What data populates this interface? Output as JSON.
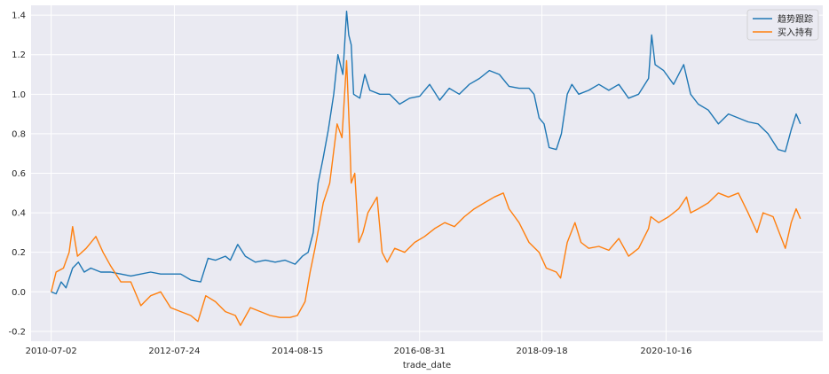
{
  "chart_data": {
    "type": "line",
    "title": "",
    "xlabel": "trade_date",
    "ylabel": "",
    "ylim": [
      -0.25,
      1.45
    ],
    "xlim": [
      "2010-03-01",
      "2023-06-01"
    ],
    "x_ticks": [
      "2010-07-02",
      "2012-07-24",
      "2014-08-15",
      "2016-08-31",
      "2018-09-18",
      "2020-10-16"
    ],
    "y_ticks": [
      -0.2,
      0.0,
      0.2,
      0.4,
      0.6,
      0.8,
      1.0,
      1.2,
      1.4
    ],
    "grid": true,
    "legend_position": "top-right",
    "series": [
      {
        "name": "趋势跟踪",
        "color": "#1f77b4",
        "points": [
          [
            "2010-07-02",
            0.0
          ],
          [
            "2010-08-01",
            -0.01
          ],
          [
            "2010-09-01",
            0.05
          ],
          [
            "2010-10-01",
            0.02
          ],
          [
            "2010-11-10",
            0.12
          ],
          [
            "2010-12-15",
            0.15
          ],
          [
            "2011-01-20",
            0.1
          ],
          [
            "2011-03-01",
            0.12
          ],
          [
            "2011-05-01",
            0.1
          ],
          [
            "2011-07-01",
            0.1
          ],
          [
            "2011-09-01",
            0.09
          ],
          [
            "2011-11-01",
            0.08
          ],
          [
            "2012-01-01",
            0.09
          ],
          [
            "2012-03-01",
            0.1
          ],
          [
            "2012-05-01",
            0.09
          ],
          [
            "2012-07-01",
            0.09
          ],
          [
            "2012-09-01",
            0.09
          ],
          [
            "2012-11-01",
            0.06
          ],
          [
            "2013-01-01",
            0.05
          ],
          [
            "2013-02-15",
            0.17
          ],
          [
            "2013-04-01",
            0.16
          ],
          [
            "2013-06-01",
            0.18
          ],
          [
            "2013-07-01",
            0.16
          ],
          [
            "2013-08-15",
            0.24
          ],
          [
            "2013-10-01",
            0.18
          ],
          [
            "2013-12-01",
            0.15
          ],
          [
            "2014-02-01",
            0.16
          ],
          [
            "2014-04-01",
            0.15
          ],
          [
            "2014-06-01",
            0.16
          ],
          [
            "2014-08-01",
            0.14
          ],
          [
            "2014-09-15",
            0.18
          ],
          [
            "2014-10-20",
            0.2
          ],
          [
            "2014-11-20",
            0.3
          ],
          [
            "2014-12-20",
            0.55
          ],
          [
            "2015-01-20",
            0.68
          ],
          [
            "2015-02-20",
            0.82
          ],
          [
            "2015-03-25",
            1.0
          ],
          [
            "2015-04-20",
            1.2
          ],
          [
            "2015-05-20",
            1.1
          ],
          [
            "2015-06-12",
            1.42
          ],
          [
            "2015-06-25",
            1.3
          ],
          [
            "2015-07-10",
            1.25
          ],
          [
            "2015-07-25",
            1.0
          ],
          [
            "2015-09-01",
            0.98
          ],
          [
            "2015-10-01",
            1.1
          ],
          [
            "2015-11-01",
            1.02
          ],
          [
            "2016-01-01",
            1.0
          ],
          [
            "2016-03-01",
            1.0
          ],
          [
            "2016-05-01",
            0.95
          ],
          [
            "2016-07-01",
            0.98
          ],
          [
            "2016-09-01",
            0.99
          ],
          [
            "2016-11-01",
            1.05
          ],
          [
            "2017-01-01",
            0.97
          ],
          [
            "2017-03-01",
            1.03
          ],
          [
            "2017-05-01",
            1.0
          ],
          [
            "2017-07-01",
            1.05
          ],
          [
            "2017-09-01",
            1.08
          ],
          [
            "2017-11-01",
            1.12
          ],
          [
            "2018-01-01",
            1.1
          ],
          [
            "2018-03-01",
            1.04
          ],
          [
            "2018-05-01",
            1.03
          ],
          [
            "2018-07-01",
            1.03
          ],
          [
            "2018-08-01",
            1.0
          ],
          [
            "2018-09-01",
            0.88
          ],
          [
            "2018-10-01",
            0.85
          ],
          [
            "2018-11-01",
            0.73
          ],
          [
            "2018-12-15",
            0.72
          ],
          [
            "2019-01-15",
            0.8
          ],
          [
            "2019-02-20",
            1.0
          ],
          [
            "2019-03-20",
            1.05
          ],
          [
            "2019-05-01",
            1.0
          ],
          [
            "2019-07-01",
            1.02
          ],
          [
            "2019-09-01",
            1.05
          ],
          [
            "2019-11-01",
            1.02
          ],
          [
            "2020-01-01",
            1.05
          ],
          [
            "2020-03-01",
            0.98
          ],
          [
            "2020-05-01",
            1.0
          ],
          [
            "2020-07-01",
            1.08
          ],
          [
            "2020-07-20",
            1.3
          ],
          [
            "2020-08-10",
            1.15
          ],
          [
            "2020-10-01",
            1.12
          ],
          [
            "2020-12-01",
            1.05
          ],
          [
            "2021-02-01",
            1.15
          ],
          [
            "2021-03-15",
            1.0
          ],
          [
            "2021-05-01",
            0.95
          ],
          [
            "2021-07-01",
            0.92
          ],
          [
            "2021-09-01",
            0.85
          ],
          [
            "2021-11-01",
            0.9
          ],
          [
            "2022-01-01",
            0.88
          ],
          [
            "2022-03-01",
            0.86
          ],
          [
            "2022-05-01",
            0.85
          ],
          [
            "2022-07-01",
            0.8
          ],
          [
            "2022-09-01",
            0.72
          ],
          [
            "2022-10-15",
            0.71
          ],
          [
            "2022-11-20",
            0.82
          ],
          [
            "2022-12-20",
            0.9
          ],
          [
            "2023-01-15",
            0.85
          ]
        ]
      },
      {
        "name": "买入持有",
        "color": "#ff7f0e",
        "points": [
          [
            "2010-07-02",
            0.0
          ],
          [
            "2010-08-01",
            0.1
          ],
          [
            "2010-09-15",
            0.12
          ],
          [
            "2010-10-20",
            0.2
          ],
          [
            "2010-11-10",
            0.33
          ],
          [
            "2010-12-10",
            0.18
          ],
          [
            "2011-02-01",
            0.22
          ],
          [
            "2011-04-01",
            0.28
          ],
          [
            "2011-05-15",
            0.2
          ],
          [
            "2011-07-01",
            0.13
          ],
          [
            "2011-09-01",
            0.05
          ],
          [
            "2011-11-01",
            0.05
          ],
          [
            "2012-01-01",
            -0.07
          ],
          [
            "2012-03-01",
            -0.02
          ],
          [
            "2012-05-01",
            0.0
          ],
          [
            "2012-07-01",
            -0.08
          ],
          [
            "2012-09-01",
            -0.1
          ],
          [
            "2012-11-01",
            -0.12
          ],
          [
            "2012-12-15",
            -0.15
          ],
          [
            "2013-02-01",
            -0.02
          ],
          [
            "2013-04-01",
            -0.05
          ],
          [
            "2013-06-01",
            -0.1
          ],
          [
            "2013-08-01",
            -0.12
          ],
          [
            "2013-09-01",
            -0.17
          ],
          [
            "2013-11-01",
            -0.08
          ],
          [
            "2014-01-01",
            -0.1
          ],
          [
            "2014-03-01",
            -0.12
          ],
          [
            "2014-05-01",
            -0.13
          ],
          [
            "2014-07-01",
            -0.13
          ],
          [
            "2014-08-15",
            -0.12
          ],
          [
            "2014-10-01",
            -0.05
          ],
          [
            "2014-11-01",
            0.1
          ],
          [
            "2014-12-01",
            0.22
          ],
          [
            "2015-01-20",
            0.45
          ],
          [
            "2015-03-01",
            0.55
          ],
          [
            "2015-04-15",
            0.85
          ],
          [
            "2015-05-15",
            0.78
          ],
          [
            "2015-06-12",
            1.17
          ],
          [
            "2015-06-30",
            0.8
          ],
          [
            "2015-07-10",
            0.55
          ],
          [
            "2015-08-01",
            0.6
          ],
          [
            "2015-08-26",
            0.25
          ],
          [
            "2015-09-20",
            0.3
          ],
          [
            "2015-10-20",
            0.4
          ],
          [
            "2015-12-15",
            0.48
          ],
          [
            "2016-01-15",
            0.2
          ],
          [
            "2016-02-15",
            0.15
          ],
          [
            "2016-04-01",
            0.22
          ],
          [
            "2016-06-01",
            0.2
          ],
          [
            "2016-08-01",
            0.25
          ],
          [
            "2016-10-01",
            0.28
          ],
          [
            "2016-12-01",
            0.32
          ],
          [
            "2017-02-01",
            0.35
          ],
          [
            "2017-04-01",
            0.33
          ],
          [
            "2017-06-01",
            0.38
          ],
          [
            "2017-08-01",
            0.42
          ],
          [
            "2017-10-01",
            0.45
          ],
          [
            "2017-12-01",
            0.48
          ],
          [
            "2018-01-25",
            0.5
          ],
          [
            "2018-03-01",
            0.42
          ],
          [
            "2018-05-01",
            0.35
          ],
          [
            "2018-07-01",
            0.25
          ],
          [
            "2018-09-01",
            0.2
          ],
          [
            "2018-10-15",
            0.12
          ],
          [
            "2018-12-15",
            0.1
          ],
          [
            "2019-01-10",
            0.07
          ],
          [
            "2019-02-20",
            0.25
          ],
          [
            "2019-04-08",
            0.35
          ],
          [
            "2019-05-15",
            0.25
          ],
          [
            "2019-07-01",
            0.22
          ],
          [
            "2019-09-01",
            0.23
          ],
          [
            "2019-11-01",
            0.21
          ],
          [
            "2020-01-01",
            0.27
          ],
          [
            "2020-03-01",
            0.18
          ],
          [
            "2020-05-01",
            0.22
          ],
          [
            "2020-07-01",
            0.32
          ],
          [
            "2020-07-15",
            0.38
          ],
          [
            "2020-09-01",
            0.35
          ],
          [
            "2020-11-01",
            0.38
          ],
          [
            "2021-01-01",
            0.42
          ],
          [
            "2021-02-18",
            0.48
          ],
          [
            "2021-03-15",
            0.4
          ],
          [
            "2021-05-01",
            0.42
          ],
          [
            "2021-07-01",
            0.45
          ],
          [
            "2021-09-01",
            0.5
          ],
          [
            "2021-11-01",
            0.48
          ],
          [
            "2022-01-01",
            0.5
          ],
          [
            "2022-03-01",
            0.4
          ],
          [
            "2022-04-25",
            0.3
          ],
          [
            "2022-06-01",
            0.4
          ],
          [
            "2022-08-01",
            0.38
          ],
          [
            "2022-10-15",
            0.22
          ],
          [
            "2022-11-20",
            0.35
          ],
          [
            "2022-12-20",
            0.42
          ],
          [
            "2023-01-15",
            0.37
          ]
        ]
      }
    ]
  }
}
